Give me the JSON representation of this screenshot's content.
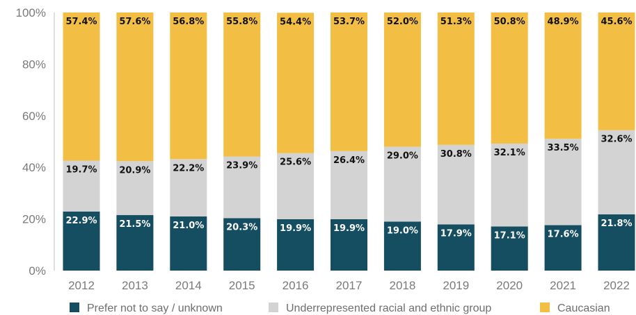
{
  "chart_data": {
    "type": "bar",
    "stacked": true,
    "categories": [
      "2012",
      "2013",
      "2014",
      "2015",
      "2016",
      "2017",
      "2018",
      "2019",
      "2020",
      "2021",
      "2022"
    ],
    "series": [
      {
        "name": "Prefer not to say / unknown",
        "color": "#154d61",
        "values": [
          22.9,
          21.5,
          21.0,
          20.3,
          19.9,
          19.9,
          19.0,
          17.9,
          17.1,
          17.6,
          21.8
        ],
        "labels": [
          "22.9%",
          "21.5%",
          "21.0%",
          "20.3%",
          "19.9%",
          "19.9%",
          "19.0%",
          "17.9%",
          "17.1%",
          "17.6%",
          "21.8%"
        ]
      },
      {
        "name": "Underrepresented racial and ethnic group",
        "color": "#d3d3d3",
        "values": [
          19.7,
          20.9,
          22.2,
          23.9,
          25.6,
          26.4,
          29.0,
          30.8,
          32.1,
          33.5,
          32.6
        ],
        "labels": [
          "19.7%",
          "20.9%",
          "22.2%",
          "23.9%",
          "25.6%",
          "26.4%",
          "29.0%",
          "30.8%",
          "32.1%",
          "33.5%",
          "32.6%"
        ]
      },
      {
        "name": "Caucasian",
        "color": "#f2bf44",
        "values": [
          57.4,
          57.6,
          56.8,
          55.8,
          54.4,
          53.7,
          52.0,
          51.3,
          50.8,
          48.9,
          45.6
        ],
        "labels": [
          "57.4%",
          "57.6%",
          "56.8%",
          "55.8%",
          "54.4%",
          "53.7%",
          "52.0%",
          "51.3%",
          "50.8%",
          "48.9%",
          "45.6%"
        ]
      }
    ],
    "y_ticks": [
      "0%",
      "20%",
      "40%",
      "60%",
      "80%",
      "100%"
    ],
    "ylim": [
      0,
      100
    ],
    "legend_position": "bottom",
    "grid": false
  }
}
